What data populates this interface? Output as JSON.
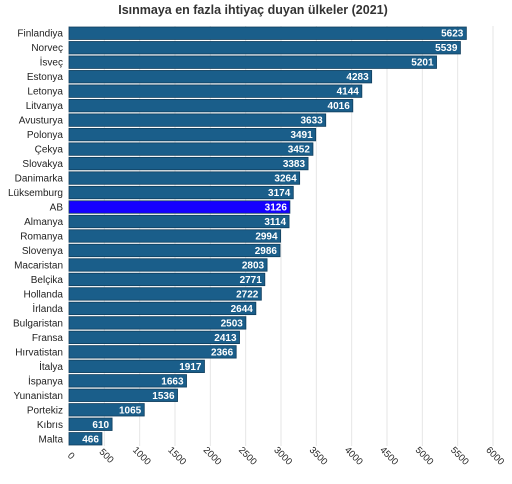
{
  "chart_data": {
    "type": "bar",
    "orientation": "horizontal",
    "title": "Isınmaya en fazla ihtiyaç duyan ülkeler (2021)",
    "categories": [
      "Finlandiya",
      "Norveç",
      "İsveç",
      "Estonya",
      "Letonya",
      "Litvanya",
      "Avusturya",
      "Polonya",
      "Çekya",
      "Slovakya",
      "Danimarka",
      "Lüksemburg",
      "AB",
      "Almanya",
      "Romanya",
      "Slovenya",
      "Macaristan",
      "Belçika",
      "Hollanda",
      "İrlanda",
      "Bulgaristan",
      "Fransa",
      "Hırvatistan",
      "İtalya",
      "İspanya",
      "Yunanistan",
      "Portekiz",
      "Kıbrıs",
      "Malta"
    ],
    "values": [
      5623,
      5539,
      5201,
      4283,
      4144,
      4016,
      3633,
      3491,
      3452,
      3383,
      3264,
      3174,
      3126,
      3114,
      2994,
      2986,
      2803,
      2771,
      2722,
      2644,
      2503,
      2413,
      2366,
      1917,
      1663,
      1536,
      1065,
      610,
      466
    ],
    "highlight_category": "AB",
    "xlim": [
      0,
      6000
    ],
    "xticks": [
      "0",
      "500",
      "1000",
      "1500",
      "2000",
      "2500",
      "3000",
      "3500",
      "4000",
      "4500",
      "5000",
      "5500",
      "6000"
    ],
    "xlabel": "",
    "ylabel": "",
    "grid": true,
    "colors": {
      "bar": "#1a5e8a",
      "highlight": "#1500ff",
      "bar_edge": "#0f3d5c"
    }
  }
}
